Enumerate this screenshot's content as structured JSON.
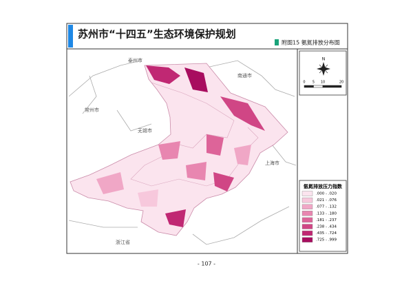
{
  "header": {
    "title": "苏州市“十四五”生态环境保护规划",
    "subtitle": "附图15  氨氮排放分布图"
  },
  "map": {
    "labels": [
      "泰州市",
      "南通市",
      "常州市",
      "无锡市",
      "上海市",
      "浙江省"
    ],
    "compass": "N",
    "scale_ticks": [
      0,
      5,
      10,
      20
    ]
  },
  "legend": {
    "title": "氨氮排放压力指数",
    "items": [
      {
        "label": ".000 - .020",
        "color": "#fbe4ee"
      },
      {
        "label": ".021 - .076",
        "color": "#f7c8dc"
      },
      {
        "label": ".077 - .132",
        "color": "#f0a7c6"
      },
      {
        "label": ".133 - .180",
        "color": "#e886b0"
      },
      {
        "label": ".181 - .237",
        "color": "#dd6499"
      },
      {
        "label": ".238 - .434",
        "color": "#d04685"
      },
      {
        "label": ".435 - .724",
        "color": "#c02873"
      },
      {
        "label": ".725 - .999",
        "color": "#a80d5f"
      }
    ]
  },
  "footer": {
    "page": "- 107 -"
  }
}
